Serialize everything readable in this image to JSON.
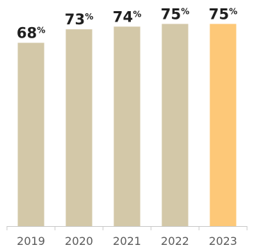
{
  "chart_data": {
    "type": "bar",
    "categories": [
      "2019",
      "2020",
      "2021",
      "2022",
      "2023"
    ],
    "values": [
      68,
      73,
      74,
      75,
      75
    ],
    "value_suffix": "%",
    "title": "",
    "xlabel": "",
    "ylabel": "",
    "ylim": [
      0,
      100
    ],
    "grid": false,
    "colors": {
      "bar": "#d3c8a8",
      "highlight": "#fdc878",
      "axis": "#c8c8c8",
      "label": "#1f1f1f",
      "tick": "#5a5a5a"
    },
    "highlight_index": 4
  }
}
